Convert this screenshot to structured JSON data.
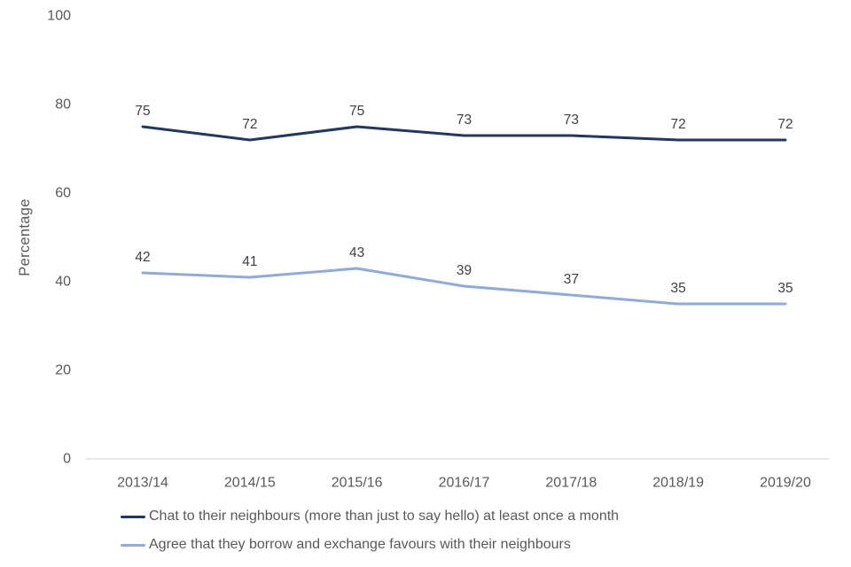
{
  "chart_data": {
    "type": "line",
    "title": "",
    "xlabel": "",
    "ylabel": "Percentage",
    "ylim": [
      0,
      100
    ],
    "yticks": [
      0,
      20,
      40,
      60,
      80,
      100
    ],
    "grid": false,
    "data_labels": true,
    "legend_position": "bottom-left",
    "categories": [
      "2013/14",
      "2014/15",
      "2015/16",
      "2016/17",
      "2017/18",
      "2018/19",
      "2019/20"
    ],
    "series": [
      {
        "name": "Chat to their neighbours (more than just to say hello) at least once a month",
        "values": [
          75,
          72,
          75,
          73,
          73,
          72,
          72
        ],
        "color": "#1F3864"
      },
      {
        "name": "Agree that they borrow and exchange favours with their neighbours",
        "values": [
          42,
          41,
          43,
          39,
          37,
          35,
          35
        ],
        "color": "#8FAADC"
      }
    ]
  },
  "colors": {
    "background": "#FFFFFF",
    "axis_line": "#D9D9D9",
    "tick_label_text": "#595959",
    "data_label_text": "#404040",
    "legend_text": "#595959"
  }
}
